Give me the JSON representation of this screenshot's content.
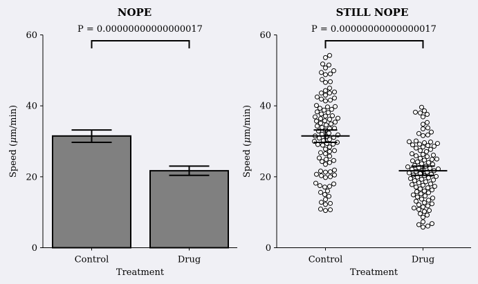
{
  "background": "#f0f0f5",
  "chart_data": [
    {
      "type": "bar",
      "title": "NOPE",
      "annotation": "P = 0.00000000000000017",
      "xlabel": "Treatment",
      "ylabel": "Speed (μm/min)",
      "ylabel_prefix": "Speed (",
      "ylabel_mu": "μ",
      "ylabel_suffix": "m/min)",
      "categories": [
        "Control",
        "Drug"
      ],
      "values": [
        31.5,
        21.7
      ],
      "error_low": [
        29.7,
        20.4
      ],
      "error_high": [
        33.2,
        23.0
      ],
      "ylim": [
        0,
        60
      ],
      "yticks": [
        0,
        20,
        40,
        60
      ],
      "bar_color": "#808080",
      "grid": false
    },
    {
      "type": "scatter",
      "subtype": "swarm",
      "title": "STILL NOPE",
      "annotation": "P = 0.00000000000000017",
      "xlabel": "Treatment",
      "ylabel": "Speed (μm/min)",
      "ylabel_prefix": "Speed (",
      "ylabel_mu": "μ",
      "ylabel_suffix": "m/min)",
      "categories": [
        "Control",
        "Drug"
      ],
      "means": [
        31.5,
        21.7
      ],
      "error_low": [
        29.7,
        20.4
      ],
      "error_high": [
        33.2,
        23.0
      ],
      "ylim": [
        0,
        60
      ],
      "yticks": [
        0,
        20,
        40,
        60
      ],
      "grid": false,
      "points": [
        [
          54.2,
          53.6,
          51.8,
          51.5,
          50.7,
          49.9,
          49.4,
          49.0,
          48.8,
          47.4,
          46.8,
          46.6,
          45.0,
          44.3,
          43.9,
          43.6,
          43.6,
          43.0,
          42.5,
          42.2,
          41.9,
          41.6,
          41.4,
          40.1,
          39.8,
          39.7,
          39.3,
          39.0,
          38.8,
          38.3,
          38.1,
          37.7,
          37.2,
          37.1,
          36.9,
          36.5,
          36.4,
          36.2,
          35.8,
          35.7,
          35.4,
          35.1,
          34.9,
          34.6,
          34.3,
          33.9,
          33.7,
          33.6,
          33.1,
          32.9,
          32.3,
          32.0,
          31.8,
          31.5,
          31.3,
          31.1,
          30.9,
          30.5,
          30.2,
          30.0,
          29.7,
          29.4,
          29.2,
          29.1,
          28.9,
          28.4,
          27.8,
          27.4,
          27.1,
          26.8,
          26.5,
          25.8,
          25.3,
          24.9,
          24.6,
          24.3,
          24.0,
          23.5,
          21.9,
          21.6,
          21.4,
          21.3,
          20.7,
          20.5,
          20.3,
          20.0,
          19.8,
          18.2,
          18.0,
          17.5,
          17.3,
          17.1,
          16.0,
          15.6,
          15.0,
          14.5,
          13.6,
          12.8,
          12.5,
          12.2,
          10.9,
          10.7,
          10.5
        ],
        [
          39.6,
          38.6,
          38.2,
          38.0,
          37.6,
          36.9,
          35.3,
          34.8,
          33.8,
          33.5,
          32.6,
          32.2,
          31.8,
          31.6,
          30.1,
          29.9,
          29.8,
          29.6,
          29.4,
          29.2,
          29.0,
          28.8,
          28.6,
          28.4,
          28.1,
          27.7,
          27.4,
          27.1,
          26.5,
          26.3,
          26.1,
          25.9,
          25.7,
          25.2,
          25.0,
          24.9,
          24.7,
          24.5,
          24.2,
          24.0,
          23.7,
          23.5,
          23.2,
          23.0,
          22.8,
          22.6,
          22.4,
          22.2,
          22.1,
          21.9,
          21.7,
          21.5,
          21.3,
          21.1,
          20.9,
          20.7,
          20.5,
          20.3,
          20.1,
          19.9,
          19.7,
          19.5,
          19.3,
          19.1,
          18.9,
          18.6,
          18.3,
          18.0,
          17.8,
          17.6,
          17.3,
          17.1,
          16.9,
          16.6,
          16.3,
          16.0,
          15.8,
          15.5,
          15.2,
          14.9,
          14.6,
          14.3,
          14.0,
          13.7,
          13.4,
          13.1,
          12.7,
          12.4,
          12.1,
          11.8,
          11.5,
          11.2,
          10.8,
          10.5,
          10.2,
          9.6,
          9.2,
          8.6,
          7.3,
          6.8,
          6.5,
          6.1,
          5.8
        ]
      ]
    }
  ]
}
